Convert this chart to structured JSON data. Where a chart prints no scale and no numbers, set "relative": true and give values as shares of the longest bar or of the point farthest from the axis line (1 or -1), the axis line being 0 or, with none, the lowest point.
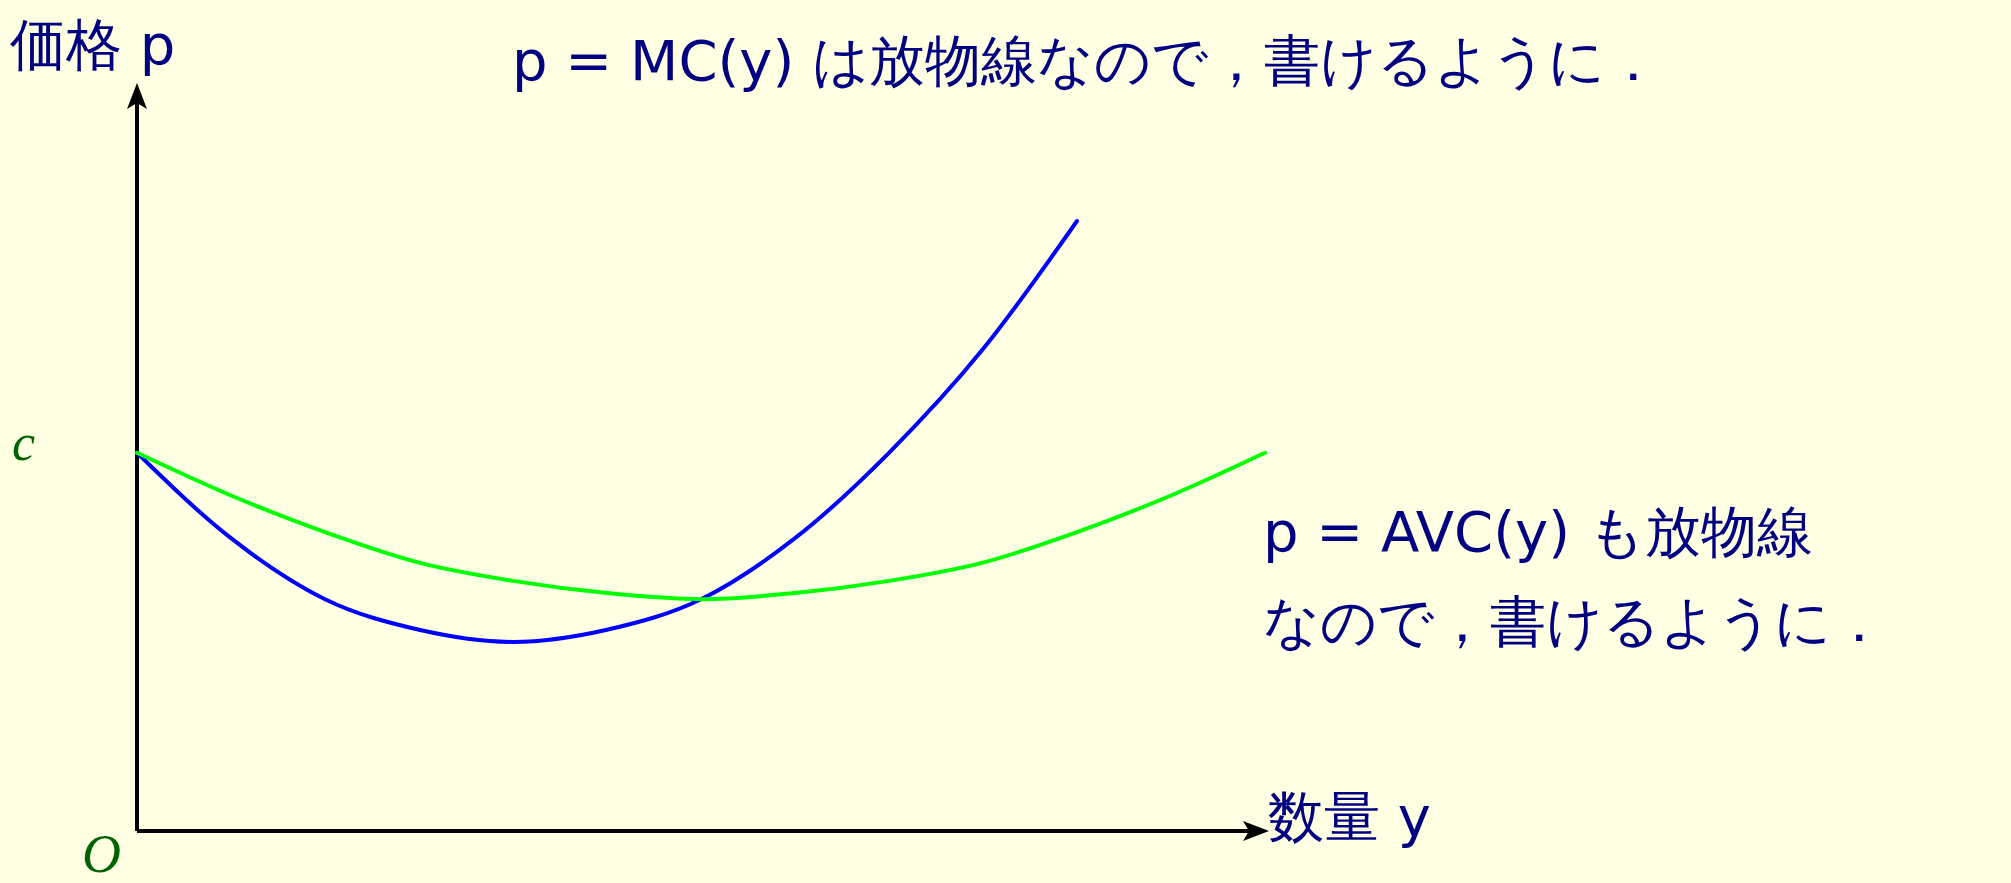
{
  "chart_data": {
    "type": "line",
    "relative": true,
    "xlabel": "数量 y",
    "ylabel": "価格 p",
    "categories": [
      null,
      null,
      null,
      null,
      null,
      null,
      null,
      null,
      null,
      null,
      null,
      null,
      null
    ],
    "series": [
      {
        "color": "#0000ff",
        "values": [
          0.62,
          0.48,
          0.38,
          0.33,
          0.31,
          0.33,
          0.38,
          0.48,
          0.62,
          0.79,
          1,
          null,
          null
        ]
      },
      {
        "color": "#00ff00",
        "values": [
          0.62,
          0.55,
          0.49,
          0.44,
          0.41,
          0.39,
          0.38,
          0.39,
          0.41,
          0.44,
          0.49,
          0.55,
          0.62
        ]
      }
    ],
    "annotations": [
      "p = MC(y) は放物線なので，書けるように．",
      "p = AVC(y) も放物線",
      "なので，書けるように．",
      "c",
      "O"
    ]
  }
}
